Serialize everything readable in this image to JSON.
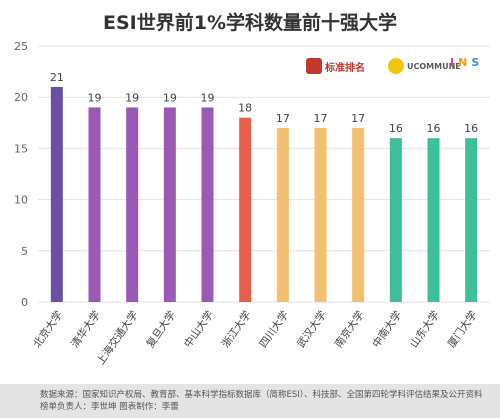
{
  "chart_data": {
    "type": "bar",
    "title": "ESI世界前1%学科数量前十强大学",
    "categories": [
      "北京大学",
      "清华大学",
      "上海交通大学",
      "复旦大学",
      "中山大学",
      "浙江大学",
      "四川大学",
      "武汉大学",
      "南京大学",
      "中南大学",
      "山东大学",
      "厦门大学"
    ],
    "values": [
      21,
      19,
      19,
      19,
      19,
      18,
      17,
      17,
      17,
      16,
      16,
      16
    ],
    "colors": [
      "#6b4fa0",
      "#9b59b6",
      "#9b59b6",
      "#9b59b6",
      "#9b59b6",
      "#e8604c",
      "#f2c071",
      "#f2c071",
      "#f2c071",
      "#3dbf9a",
      "#3dbf9a",
      "#3dbf9a"
    ],
    "yticks": [
      0,
      5,
      10,
      15,
      20,
      25
    ],
    "ylim": [
      0,
      25
    ],
    "grid": true,
    "xlabel": "",
    "ylabel": ""
  },
  "logos": {
    "logo1": "标准排名",
    "logo2": "UCOMMUNE",
    "logo3": [
      "I",
      "N",
      "S"
    ]
  },
  "footer": {
    "line1": "数据来源：国家知识产权局、教育部、基本科学指标数据库（简称ESI）、科技部、全国第四轮学科评估结果及公开资料",
    "line2": "榜单负责人：李世坤   图表制作：李蕾"
  }
}
